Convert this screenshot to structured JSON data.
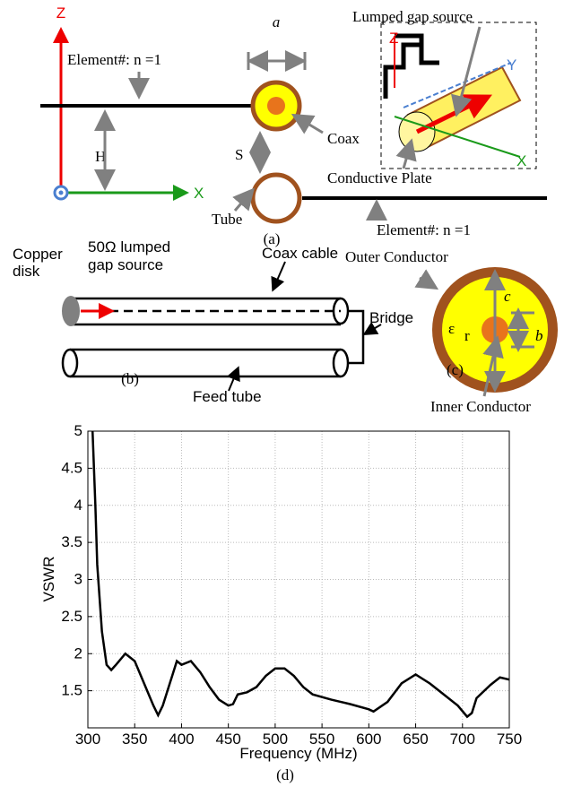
{
  "figure_a": {
    "z_axis": "Z",
    "x_axis": "X",
    "element_top": "Element#:  n =1",
    "element_bottom": "Element#:  n =1",
    "a": "a",
    "h": "H",
    "s": "S",
    "coax": "Coax",
    "tube": "Tube",
    "caption": "(a)",
    "inset_title": "Lumped gap source",
    "inset_plate": "Conductive Plate",
    "inset_z": "Z",
    "inset_y": "Y",
    "inset_x": "X"
  },
  "figure_b": {
    "copper_disk": [
      "Copper",
      "disk"
    ],
    "source": [
      "50Ω lumped",
      "gap source"
    ],
    "coax_cable": "Coax cable",
    "bridge": "Bridge",
    "caption": "(b)",
    "feed_tube": "Feed tube"
  },
  "figure_c": {
    "outer": "Outer Conductor",
    "c": "c",
    "b": "b",
    "eps": "ε",
    "eps_sub": "r",
    "caption": "(c)",
    "inner": "Inner Conductor"
  },
  "chart_data": {
    "type": "line",
    "xlabel": "Frequency (MHz)",
    "ylabel": "VSWR",
    "caption": "(d)",
    "x": [
      305,
      308,
      310,
      315,
      320,
      325,
      330,
      340,
      350,
      360,
      370,
      375,
      380,
      390,
      395,
      400,
      410,
      420,
      430,
      440,
      450,
      455,
      460,
      470,
      480,
      490,
      500,
      510,
      520,
      530,
      540,
      560,
      580,
      600,
      605,
      620,
      635,
      650,
      665,
      680,
      695,
      705,
      710,
      715,
      730,
      740,
      750
    ],
    "series": [
      {
        "name": "VSWR",
        "color": "#000000",
        "values": [
          5,
          4,
          3.2,
          2.3,
          1.85,
          1.78,
          1.85,
          2.0,
          1.9,
          1.6,
          1.3,
          1.17,
          1.3,
          1.7,
          1.9,
          1.85,
          1.9,
          1.75,
          1.55,
          1.38,
          1.3,
          1.32,
          1.45,
          1.48,
          1.55,
          1.7,
          1.8,
          1.8,
          1.7,
          1.55,
          1.45,
          1.38,
          1.32,
          1.25,
          1.22,
          1.35,
          1.6,
          1.72,
          1.6,
          1.45,
          1.3,
          1.15,
          1.2,
          1.4,
          1.58,
          1.68,
          1.65
        ]
      }
    ],
    "xlim": [
      300,
      750
    ],
    "xticks": [
      300,
      350,
      400,
      450,
      500,
      550,
      600,
      650,
      700,
      750
    ],
    "ylim": [
      1,
      5
    ],
    "yticks": [
      1.5,
      2,
      2.5,
      3,
      3.5,
      4,
      4.5,
      5
    ],
    "grid": true
  }
}
